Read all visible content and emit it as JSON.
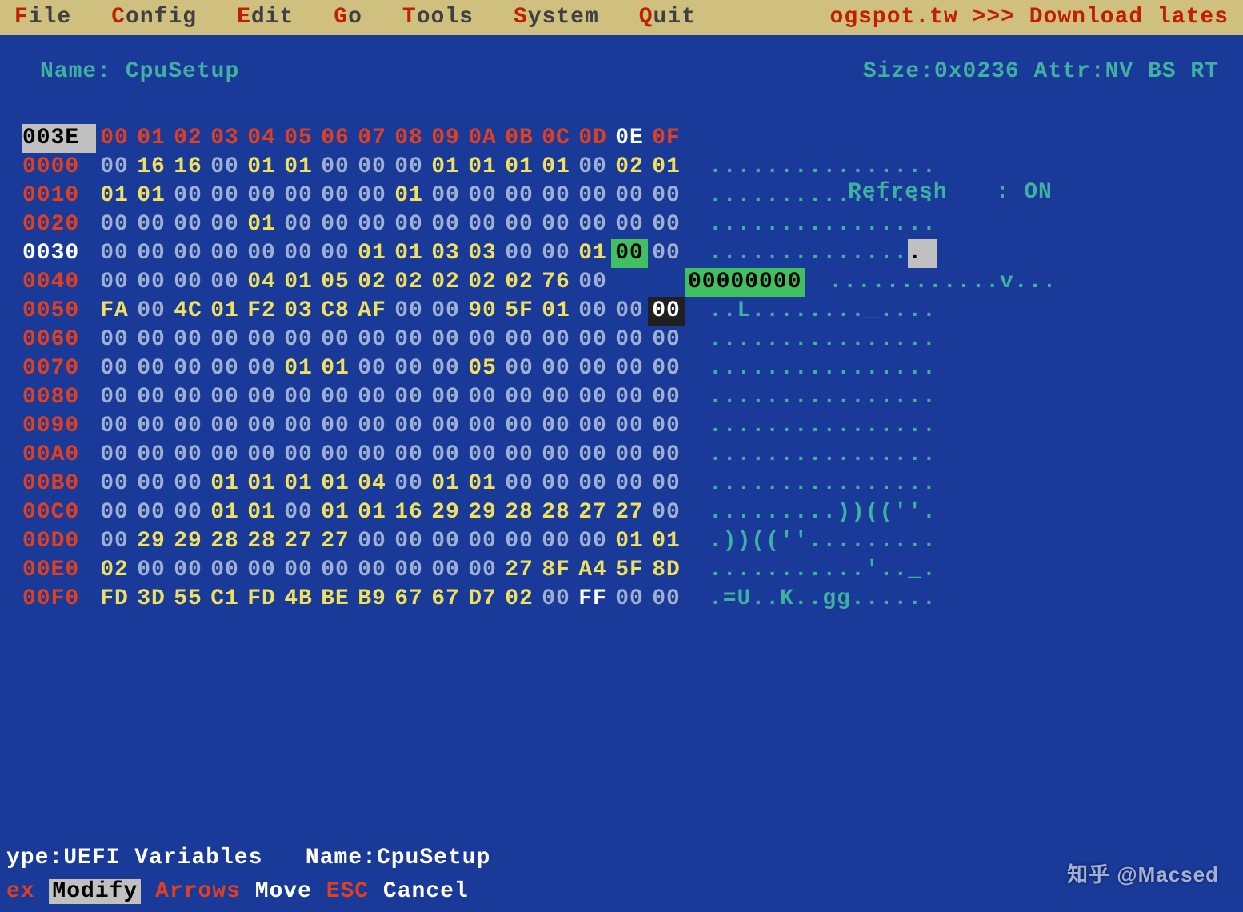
{
  "colors": {
    "bg": "#1a3a9a",
    "menubg": "#d0c080",
    "hot": "#c02000",
    "teal": "#40b0a0",
    "red": "#e04020",
    "yellow": "#f0e060",
    "grey": "#a0b0d0",
    "white": "#ffffff",
    "green": "#40c060",
    "selbg": "#c0c0c0",
    "black": "#202020"
  },
  "menu": [
    {
      "hot": "F",
      "rest": "ile"
    },
    {
      "hot": "C",
      "rest": "onfig"
    },
    {
      "hot": "E",
      "rest": "dit"
    },
    {
      "hot": "G",
      "rest": "o"
    },
    {
      "hot": "T",
      "rest": "ools"
    },
    {
      "hot": "S",
      "rest": "ystem"
    },
    {
      "hot": "Q",
      "rest": "uit"
    }
  ],
  "menu_scroll": "ogspot.tw   >>> Download lates",
  "info": {
    "name_label": "Name: ",
    "name": "CpuSetup",
    "size_label": "Size:",
    "size": "0x0236",
    "attr_label": " Attr:",
    "attr": "NV BS RT"
  },
  "refresh": {
    "label": "Refresh",
    "sep": ":",
    "value": "ON"
  },
  "header": {
    "offset": "003E",
    "offset_style": "sel",
    "bytes": [
      {
        "v": "00",
        "c": "r"
      },
      {
        "v": "01",
        "c": "r"
      },
      {
        "v": "02",
        "c": "r"
      },
      {
        "v": "03",
        "c": "r"
      },
      {
        "v": "04",
        "c": "r"
      },
      {
        "v": "05",
        "c": "r"
      },
      {
        "v": "06",
        "c": "r"
      },
      {
        "v": "07",
        "c": "r"
      },
      {
        "v": "08",
        "c": "r"
      },
      {
        "v": "09",
        "c": "r"
      },
      {
        "v": "0A",
        "c": "r"
      },
      {
        "v": "0B",
        "c": "r"
      },
      {
        "v": "0C",
        "c": "r"
      },
      {
        "v": "0D",
        "c": "r"
      },
      {
        "v": "0E",
        "c": "w"
      },
      {
        "v": "0F",
        "c": "r"
      }
    ],
    "ascii": ""
  },
  "rows": [
    {
      "o": "0000",
      "b": [
        [
          "00",
          ""
        ],
        [
          "16",
          "y"
        ],
        [
          "16",
          "y"
        ],
        [
          "00",
          ""
        ],
        [
          "01",
          "y"
        ],
        [
          "01",
          "y"
        ],
        [
          "00",
          ""
        ],
        [
          "00",
          ""
        ],
        [
          "00",
          ""
        ],
        [
          "01",
          "y"
        ],
        [
          "01",
          "y"
        ],
        [
          "01",
          "y"
        ],
        [
          "01",
          "y"
        ],
        [
          "00",
          ""
        ],
        [
          "02",
          "y"
        ],
        [
          "01",
          "y"
        ]
      ],
      "a": "................"
    },
    {
      "o": "0010",
      "b": [
        [
          "01",
          "y"
        ],
        [
          "01",
          "y"
        ],
        [
          "00",
          ""
        ],
        [
          "00",
          ""
        ],
        [
          "00",
          ""
        ],
        [
          "00",
          ""
        ],
        [
          "00",
          ""
        ],
        [
          "00",
          ""
        ],
        [
          "01",
          "y"
        ],
        [
          "00",
          ""
        ],
        [
          "00",
          ""
        ],
        [
          "00",
          ""
        ],
        [
          "00",
          ""
        ],
        [
          "00",
          ""
        ],
        [
          "00",
          ""
        ],
        [
          "00",
          ""
        ]
      ],
      "a": "................"
    },
    {
      "o": "0020",
      "b": [
        [
          "00",
          ""
        ],
        [
          "00",
          ""
        ],
        [
          "00",
          ""
        ],
        [
          "00",
          ""
        ],
        [
          "01",
          "y"
        ],
        [
          "00",
          ""
        ],
        [
          "00",
          ""
        ],
        [
          "00",
          ""
        ],
        [
          "00",
          ""
        ],
        [
          "00",
          ""
        ],
        [
          "00",
          ""
        ],
        [
          "00",
          ""
        ],
        [
          "00",
          ""
        ],
        [
          "00",
          ""
        ],
        [
          "00",
          ""
        ],
        [
          "00",
          ""
        ]
      ],
      "a": "................"
    },
    {
      "o": "0030",
      "os": "w",
      "b": [
        [
          "00",
          ""
        ],
        [
          "00",
          ""
        ],
        [
          "00",
          ""
        ],
        [
          "00",
          ""
        ],
        [
          "00",
          ""
        ],
        [
          "00",
          ""
        ],
        [
          "00",
          ""
        ],
        [
          "01",
          "y"
        ],
        [
          "01",
          "y"
        ],
        [
          "03",
          "y"
        ],
        [
          "03",
          "y"
        ],
        [
          "00",
          ""
        ],
        [
          "00",
          ""
        ],
        [
          "01",
          "y"
        ],
        [
          "00",
          "grn"
        ],
        [
          "00",
          ""
        ]
      ],
      "a": "..............",
      "ax": ". "
    },
    {
      "o": "0040",
      "b": [
        [
          "00",
          ""
        ],
        [
          "00",
          ""
        ],
        [
          "00",
          ""
        ],
        [
          "00",
          ""
        ],
        [
          "04",
          "y"
        ],
        [
          "01",
          "y"
        ],
        [
          "05",
          "y"
        ],
        [
          "02",
          "y"
        ],
        [
          "02",
          "y"
        ],
        [
          "02",
          "y"
        ],
        [
          "02",
          "y"
        ],
        [
          "02",
          "y"
        ],
        [
          "76",
          "y"
        ],
        [
          "00",
          ""
        ],
        [
          "",
          "sp"
        ],
        [
          "",
          "sp"
        ]
      ],
      "ex": "00000000",
      "a": "............v..."
    },
    {
      "o": "0050",
      "b": [
        [
          "FA",
          "y"
        ],
        [
          "00",
          ""
        ],
        [
          "4C",
          "y"
        ],
        [
          "01",
          "y"
        ],
        [
          "F2",
          "y"
        ],
        [
          "03",
          "y"
        ],
        [
          "C8",
          "y"
        ],
        [
          "AF",
          "y"
        ],
        [
          "00",
          ""
        ],
        [
          "00",
          ""
        ],
        [
          "90",
          "y"
        ],
        [
          "5F",
          "y"
        ],
        [
          "01",
          "y"
        ],
        [
          "00",
          ""
        ],
        [
          "00",
          ""
        ],
        [
          "00",
          "blk"
        ]
      ],
      "a": "..L........_...."
    },
    {
      "o": "0060",
      "b": [
        [
          "00",
          ""
        ],
        [
          "00",
          ""
        ],
        [
          "00",
          ""
        ],
        [
          "00",
          ""
        ],
        [
          "00",
          ""
        ],
        [
          "00",
          ""
        ],
        [
          "00",
          ""
        ],
        [
          "00",
          ""
        ],
        [
          "00",
          ""
        ],
        [
          "00",
          ""
        ],
        [
          "00",
          ""
        ],
        [
          "00",
          ""
        ],
        [
          "00",
          ""
        ],
        [
          "00",
          ""
        ],
        [
          "00",
          ""
        ],
        [
          "00",
          ""
        ]
      ],
      "a": "................"
    },
    {
      "o": "0070",
      "b": [
        [
          "00",
          ""
        ],
        [
          "00",
          ""
        ],
        [
          "00",
          ""
        ],
        [
          "00",
          ""
        ],
        [
          "00",
          ""
        ],
        [
          "01",
          "y"
        ],
        [
          "01",
          "y"
        ],
        [
          "00",
          ""
        ],
        [
          "00",
          ""
        ],
        [
          "00",
          ""
        ],
        [
          "05",
          "y"
        ],
        [
          "00",
          ""
        ],
        [
          "00",
          ""
        ],
        [
          "00",
          ""
        ],
        [
          "00",
          ""
        ],
        [
          "00",
          ""
        ]
      ],
      "a": "................"
    },
    {
      "o": "0080",
      "b": [
        [
          "00",
          ""
        ],
        [
          "00",
          ""
        ],
        [
          "00",
          ""
        ],
        [
          "00",
          ""
        ],
        [
          "00",
          ""
        ],
        [
          "00",
          ""
        ],
        [
          "00",
          ""
        ],
        [
          "00",
          ""
        ],
        [
          "00",
          ""
        ],
        [
          "00",
          ""
        ],
        [
          "00",
          ""
        ],
        [
          "00",
          ""
        ],
        [
          "00",
          ""
        ],
        [
          "00",
          ""
        ],
        [
          "00",
          ""
        ],
        [
          "00",
          ""
        ]
      ],
      "a": "................"
    },
    {
      "o": "0090",
      "b": [
        [
          "00",
          ""
        ],
        [
          "00",
          ""
        ],
        [
          "00",
          ""
        ],
        [
          "00",
          ""
        ],
        [
          "00",
          ""
        ],
        [
          "00",
          ""
        ],
        [
          "00",
          ""
        ],
        [
          "00",
          ""
        ],
        [
          "00",
          ""
        ],
        [
          "00",
          ""
        ],
        [
          "00",
          ""
        ],
        [
          "00",
          ""
        ],
        [
          "00",
          ""
        ],
        [
          "00",
          ""
        ],
        [
          "00",
          ""
        ],
        [
          "00",
          ""
        ]
      ],
      "a": "................"
    },
    {
      "o": "00A0",
      "b": [
        [
          "00",
          ""
        ],
        [
          "00",
          ""
        ],
        [
          "00",
          ""
        ],
        [
          "00",
          ""
        ],
        [
          "00",
          ""
        ],
        [
          "00",
          ""
        ],
        [
          "00",
          ""
        ],
        [
          "00",
          ""
        ],
        [
          "00",
          ""
        ],
        [
          "00",
          ""
        ],
        [
          "00",
          ""
        ],
        [
          "00",
          ""
        ],
        [
          "00",
          ""
        ],
        [
          "00",
          ""
        ],
        [
          "00",
          ""
        ],
        [
          "00",
          ""
        ]
      ],
      "a": "................"
    },
    {
      "o": "00B0",
      "b": [
        [
          "00",
          ""
        ],
        [
          "00",
          ""
        ],
        [
          "00",
          ""
        ],
        [
          "01",
          "y"
        ],
        [
          "01",
          "y"
        ],
        [
          "01",
          "y"
        ],
        [
          "01",
          "y"
        ],
        [
          "04",
          "y"
        ],
        [
          "00",
          ""
        ],
        [
          "01",
          "y"
        ],
        [
          "01",
          "y"
        ],
        [
          "00",
          ""
        ],
        [
          "00",
          ""
        ],
        [
          "00",
          ""
        ],
        [
          "00",
          ""
        ],
        [
          "00",
          ""
        ]
      ],
      "a": "................"
    },
    {
      "o": "00C0",
      "b": [
        [
          "00",
          ""
        ],
        [
          "00",
          ""
        ],
        [
          "00",
          ""
        ],
        [
          "01",
          "y"
        ],
        [
          "01",
          "y"
        ],
        [
          "00",
          ""
        ],
        [
          "01",
          "y"
        ],
        [
          "01",
          "y"
        ],
        [
          "16",
          "y"
        ],
        [
          "29",
          "y"
        ],
        [
          "29",
          "y"
        ],
        [
          "28",
          "y"
        ],
        [
          "28",
          "y"
        ],
        [
          "27",
          "y"
        ],
        [
          "27",
          "y"
        ],
        [
          "00",
          ""
        ]
      ],
      "a": ".........))((''."
    },
    {
      "o": "00D0",
      "b": [
        [
          "00",
          ""
        ],
        [
          "29",
          "y"
        ],
        [
          "29",
          "y"
        ],
        [
          "28",
          "y"
        ],
        [
          "28",
          "y"
        ],
        [
          "27",
          "y"
        ],
        [
          "27",
          "y"
        ],
        [
          "00",
          ""
        ],
        [
          "00",
          ""
        ],
        [
          "00",
          ""
        ],
        [
          "00",
          ""
        ],
        [
          "00",
          ""
        ],
        [
          "00",
          ""
        ],
        [
          "00",
          ""
        ],
        [
          "01",
          "y"
        ],
        [
          "01",
          "y"
        ]
      ],
      "a": ".))((''........."
    },
    {
      "o": "00E0",
      "b": [
        [
          "02",
          "y"
        ],
        [
          "00",
          ""
        ],
        [
          "00",
          ""
        ],
        [
          "00",
          ""
        ],
        [
          "00",
          ""
        ],
        [
          "00",
          ""
        ],
        [
          "00",
          ""
        ],
        [
          "00",
          ""
        ],
        [
          "00",
          ""
        ],
        [
          "00",
          ""
        ],
        [
          "00",
          ""
        ],
        [
          "27",
          "y"
        ],
        [
          "8F",
          "y"
        ],
        [
          "A4",
          "y"
        ],
        [
          "5F",
          "y"
        ],
        [
          "8D",
          "y"
        ]
      ],
      "a": "...........'.._."
    },
    {
      "o": "00F0",
      "b": [
        [
          "FD",
          "y"
        ],
        [
          "3D",
          "y"
        ],
        [
          "55",
          "y"
        ],
        [
          "C1",
          "y"
        ],
        [
          "FD",
          "y"
        ],
        [
          "4B",
          "y"
        ],
        [
          "BE",
          "y"
        ],
        [
          "B9",
          "y"
        ],
        [
          "67",
          "y"
        ],
        [
          "67",
          "y"
        ],
        [
          "D7",
          "y"
        ],
        [
          "02",
          "y"
        ],
        [
          "00",
          ""
        ],
        [
          "FF",
          "w"
        ],
        [
          "00",
          ""
        ],
        [
          "00",
          ""
        ]
      ],
      "a": ".=U..K..gg......"
    }
  ],
  "footer1": {
    "type_label": "ype:",
    "type": "UEFI Variables",
    "name_label": "Name:",
    "name": "CpuSetup"
  },
  "footer2": [
    {
      "k": "ex",
      "kbg": false,
      "t": ""
    },
    {
      "k": "",
      "kbg": true,
      "kt": "Modify",
      "t": ""
    },
    {
      "k": "Arrows",
      "kbg": false,
      "t": "Move"
    },
    {
      "k": "ESC",
      "kbg": false,
      "t": "Cancel"
    }
  ],
  "watermark": "知乎 @Macsed"
}
